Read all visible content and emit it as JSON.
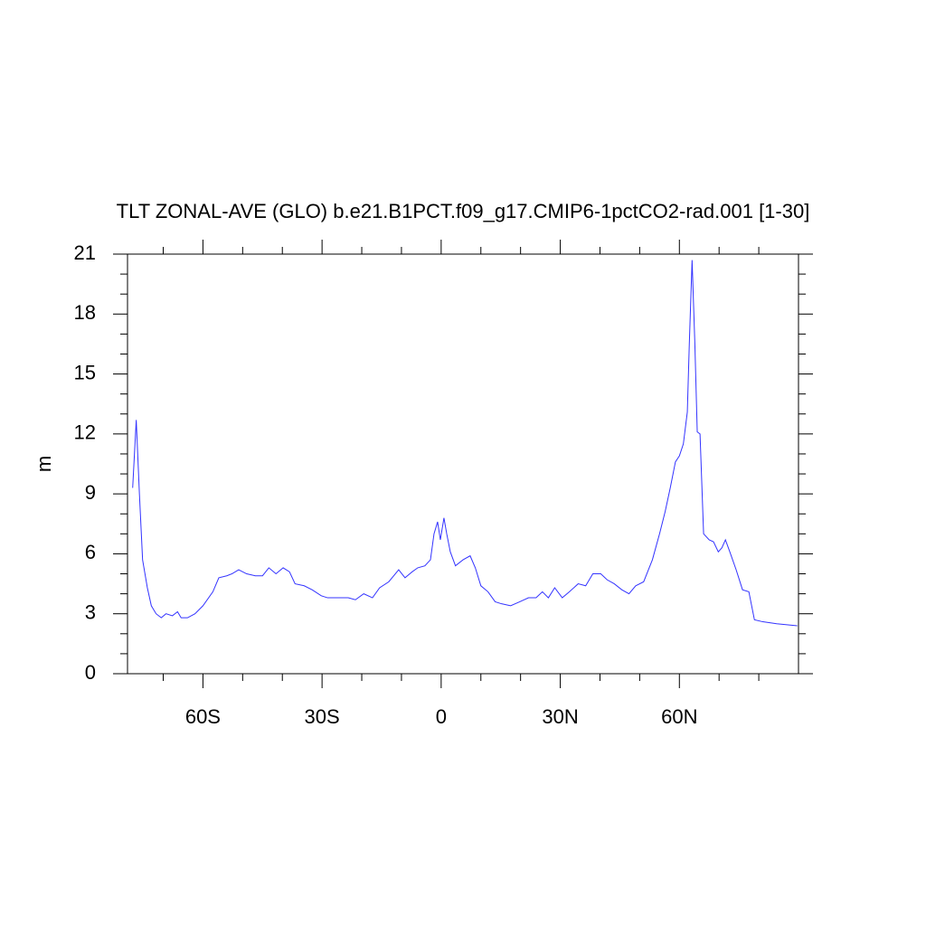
{
  "chart_data": {
    "type": "line",
    "title": "TLT ZONAL-AVE (GLO) b.e21.B1PCT.f09_g17.CMIP6-1pctCO2-rad.001 [1-30]",
    "y_label": "m",
    "color": "#3333ff",
    "x": [
      -77.7,
      -76.8,
      -76,
      -75.2,
      -74,
      -73,
      -71.8,
      -70.5,
      -69.3,
      -67.7,
      -66.4,
      -65.5,
      -63.9,
      -62,
      -60,
      -57.5,
      -56,
      -54,
      -52.7,
      -51,
      -49,
      -46.8,
      -45,
      -43.4,
      -41.6,
      -39.8,
      -38.2,
      -36.8,
      -34.5,
      -32.5,
      -30.2,
      -28.6,
      -25.7,
      -23.4,
      -21.6,
      -19.5,
      -17.3,
      -15.5,
      -13.2,
      -10.7,
      -9.1,
      -7.3,
      -5.9,
      -4.1,
      -2.7,
      -1.8,
      -0.9,
      -0.2,
      0.7,
      1.4,
      2.3,
      3.6,
      5.5,
      7.3,
      8.6,
      10,
      11.8,
      13.6,
      15.2,
      17.5,
      19.8,
      22,
      23.9,
      25.5,
      27,
      28.6,
      30.5,
      32.3,
      34.5,
      36.4,
      38.2,
      40.2,
      41.8,
      43.6,
      45.5,
      47.3,
      49,
      51,
      53.2,
      55,
      56.4,
      57.7,
      59,
      60,
      61,
      62,
      62.5,
      63.2,
      63.9,
      64.5,
      65.2,
      66.1,
      67.5,
      68.6,
      69.8,
      70.7,
      71.6,
      72.7,
      74.3,
      75.9,
      77.5,
      78.9,
      81,
      84.5,
      89.7
    ],
    "values": [
      9.3,
      12.7,
      9.0,
      5.7,
      4.3,
      3.4,
      3.0,
      2.8,
      3.0,
      2.9,
      3.1,
      2.8,
      2.8,
      3.0,
      3.4,
      4.1,
      4.8,
      4.9,
      5.0,
      5.2,
      5.0,
      4.9,
      4.9,
      5.3,
      5.0,
      5.3,
      5.1,
      4.5,
      4.4,
      4.2,
      3.9,
      3.8,
      3.8,
      3.8,
      3.7,
      4.0,
      3.8,
      4.3,
      4.6,
      5.2,
      4.8,
      5.1,
      5.3,
      5.4,
      5.7,
      7.0,
      7.6,
      6.7,
      7.8,
      7.0,
      6.1,
      5.4,
      5.7,
      5.9,
      5.3,
      4.4,
      4.1,
      3.6,
      3.5,
      3.4,
      3.6,
      3.8,
      3.8,
      4.1,
      3.8,
      4.3,
      3.8,
      4.1,
      4.5,
      4.4,
      5.0,
      5.0,
      4.7,
      4.5,
      4.2,
      4.0,
      4.4,
      4.6,
      5.7,
      7.0,
      8.1,
      9.3,
      10.6,
      10.9,
      11.5,
      13.1,
      16.5,
      20.7,
      16.5,
      12.1,
      12.0,
      7.0,
      6.7,
      6.6,
      6.1,
      6.3,
      6.7,
      6.1,
      5.2,
      4.2,
      4.1,
      2.7,
      2.6,
      2.5,
      2.4
    ],
    "xlim": [
      -79,
      90
    ],
    "ylim": [
      0,
      21
    ],
    "xticks": [
      {
        "value": -60,
        "label": "60S"
      },
      {
        "value": -30,
        "label": "30S"
      },
      0,
      {
        "value": 30,
        "label": "30N"
      },
      {
        "value": 60,
        "label": "60N"
      }
    ],
    "xminorticks": [
      -70,
      -50,
      -40,
      -20,
      -10,
      10,
      20,
      40,
      50,
      70,
      80
    ],
    "yticks": [
      0,
      3,
      6,
      9,
      12,
      15,
      18,
      21
    ],
    "yminorticks": [
      1,
      2,
      4,
      5,
      7,
      8,
      10,
      11,
      13,
      14,
      16,
      17,
      19,
      20
    ]
  }
}
